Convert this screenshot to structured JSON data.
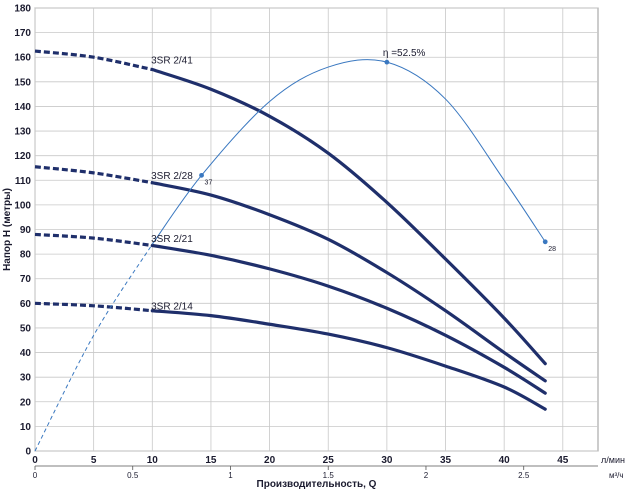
{
  "chart_data": {
    "type": "line",
    "title": "",
    "xlabel": "Производительность, Q",
    "ylabel": "Напор Н (метры)",
    "x_unit_primary": "л/мин",
    "x_unit_secondary": "м³/ч",
    "xlim": [
      0,
      48
    ],
    "ylim": [
      0,
      180
    ],
    "x_ticks": [
      0,
      5,
      10,
      15,
      20,
      25,
      30,
      35,
      40,
      45
    ],
    "y_ticks": [
      0,
      10,
      20,
      30,
      40,
      50,
      60,
      70,
      80,
      90,
      100,
      110,
      120,
      130,
      140,
      150,
      160,
      170,
      180
    ],
    "secondary_x_ticks": [
      {
        "label": "0",
        "value": 0
      },
      {
        "label": "0.5",
        "value": 8.333
      },
      {
        "label": "1",
        "value": 16.667
      },
      {
        "label": "1.5",
        "value": 25
      },
      {
        "label": "2",
        "value": 33.333
      },
      {
        "label": "2.5",
        "value": 41.667
      }
    ],
    "grid": true,
    "series": [
      {
        "name": "3SR  2/41",
        "color": "#1f2f6b",
        "dashed_until": 10,
        "points": [
          [
            0,
            162.5
          ],
          [
            5,
            160
          ],
          [
            10,
            155
          ],
          [
            15,
            147
          ],
          [
            20,
            136
          ],
          [
            25,
            121
          ],
          [
            30,
            101
          ],
          [
            35,
            78
          ],
          [
            40,
            54
          ],
          [
            43.5,
            35.5
          ]
        ]
      },
      {
        "name": "3SR  2/28",
        "color": "#1f2f6b",
        "dashed_until": 10,
        "points": [
          [
            0,
            115.5
          ],
          [
            5,
            113
          ],
          [
            10,
            109
          ],
          [
            15,
            104
          ],
          [
            20,
            96
          ],
          [
            25,
            86
          ],
          [
            30,
            72.5
          ],
          [
            35,
            57
          ],
          [
            40,
            40
          ],
          [
            43.5,
            28.5
          ]
        ]
      },
      {
        "name": "3SR  2/21",
        "color": "#1f2f6b",
        "dashed_until": 10,
        "points": [
          [
            0,
            88
          ],
          [
            5,
            86.5
          ],
          [
            10,
            83.5
          ],
          [
            15,
            79.5
          ],
          [
            20,
            74
          ],
          [
            25,
            67
          ],
          [
            30,
            58
          ],
          [
            35,
            47
          ],
          [
            40,
            34
          ],
          [
            43.5,
            23.5
          ]
        ]
      },
      {
        "name": "3SR  2/14",
        "color": "#1f2f6b",
        "dashed_until": 10,
        "points": [
          [
            0,
            60
          ],
          [
            5,
            59
          ],
          [
            10,
            57
          ],
          [
            15,
            55
          ],
          [
            20,
            51.5
          ],
          [
            25,
            47.5
          ],
          [
            30,
            42
          ],
          [
            35,
            34.5
          ],
          [
            40,
            26
          ],
          [
            43.5,
            17
          ]
        ]
      }
    ],
    "label_positions": [
      [
        9.9,
        157.5
      ],
      [
        9.9,
        110.5
      ],
      [
        9.9,
        85
      ],
      [
        9.9,
        57.5
      ]
    ],
    "efficiency": {
      "label": "η =52.5%",
      "color": "#3a78c0",
      "dashed_until": 10,
      "points": [
        [
          0,
          0
        ],
        [
          5,
          47
        ],
        [
          10,
          84
        ],
        [
          14.2,
          112
        ],
        [
          20,
          142
        ],
        [
          25,
          156
        ],
        [
          30,
          158
        ],
        [
          35,
          143
        ],
        [
          40,
          110
        ],
        [
          43.5,
          85
        ]
      ],
      "markers": [
        {
          "x": 14.2,
          "y": 112,
          "label": "37"
        },
        {
          "x": 30,
          "y": 158,
          "label": ""
        },
        {
          "x": 43.5,
          "y": 85,
          "label": "28"
        }
      ]
    }
  }
}
